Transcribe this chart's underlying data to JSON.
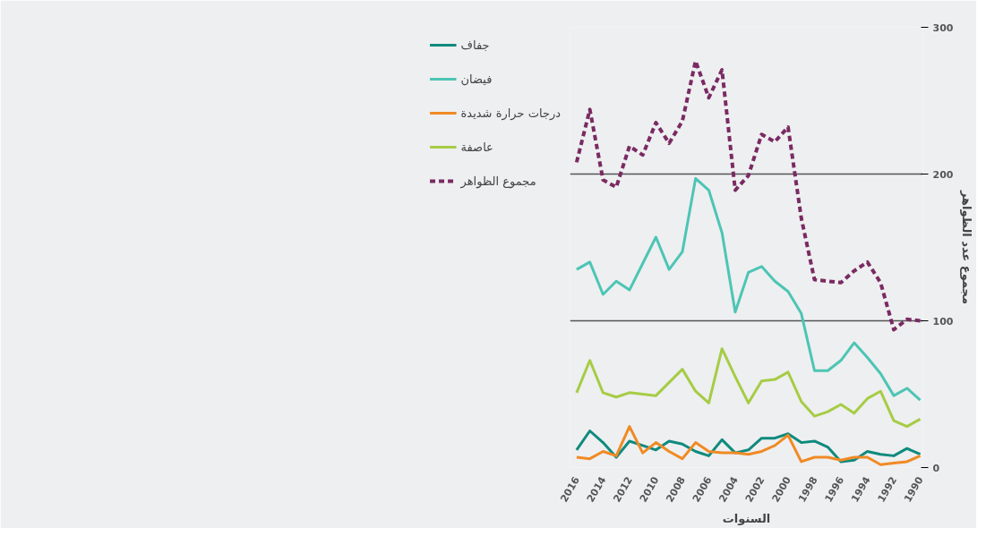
{
  "chart_data": {
    "type": "line",
    "xlabel": "السنوات",
    "ylabel": "مجموع عدد الظواهر",
    "x": [
      2016,
      2015,
      2014,
      2013,
      2012,
      2011,
      2010,
      2009,
      2008,
      2007,
      2006,
      2005,
      2004,
      2003,
      2002,
      2001,
      2000,
      1999,
      1998,
      1997,
      1996,
      1995,
      1994,
      1993,
      1992,
      1991,
      1990
    ],
    "xlim": [
      2016.5,
      1989.8
    ],
    "xticks": [
      2016,
      2014,
      2012,
      2010,
      2008,
      2006,
      2004,
      2002,
      2000,
      1998,
      1996,
      1994,
      1992,
      1990
    ],
    "ylim": [
      0,
      300
    ],
    "yticks": [
      0,
      100,
      200,
      300
    ],
    "grid": "y",
    "legend": "left",
    "series": [
      {
        "name": "جفاف",
        "color": "#0f8a7e",
        "line_style": "solid",
        "values": [
          12,
          25,
          17,
          7,
          18,
          15,
          12,
          18,
          16,
          11,
          8,
          19,
          10,
          12,
          20,
          20,
          23,
          17,
          18,
          14,
          4,
          5,
          11,
          9,
          8,
          13,
          9
        ]
      },
      {
        "name": "فيضان",
        "color": "#4cc5b5",
        "line_style": "solid",
        "values": [
          135,
          140,
          118,
          127,
          121,
          139,
          157,
          135,
          147,
          197,
          189,
          160,
          106,
          133,
          137,
          127,
          120,
          105,
          66,
          66,
          73,
          85,
          75,
          64,
          49,
          54,
          46
        ]
      },
      {
        "name": "درجات حرارة شديدة",
        "color": "#f08a24",
        "line_style": "solid",
        "values": [
          7,
          6,
          11,
          8,
          28,
          10,
          17,
          11,
          6,
          17,
          11,
          10,
          10,
          9,
          11,
          15,
          22,
          4,
          7,
          7,
          5,
          7,
          7,
          2,
          3,
          4,
          8
        ]
      },
      {
        "name": "عاصفة",
        "color": "#a6cc45",
        "line_style": "solid",
        "values": [
          51,
          73,
          51,
          48,
          51,
          50,
          49,
          58,
          67,
          52,
          44,
          81,
          62,
          44,
          59,
          60,
          65,
          45,
          35,
          38,
          43,
          37,
          47,
          52,
          32,
          28,
          33
        ]
      },
      {
        "name": "مجموع الظواهر",
        "color": "#7a2a63",
        "line_style": "dashed",
        "values": [
          208,
          244,
          196,
          191,
          219,
          213,
          235,
          221,
          236,
          277,
          252,
          271,
          189,
          199,
          227,
          222,
          232,
          170,
          128,
          127,
          126,
          134,
          140,
          126,
          94,
          101,
          100
        ]
      }
    ]
  }
}
